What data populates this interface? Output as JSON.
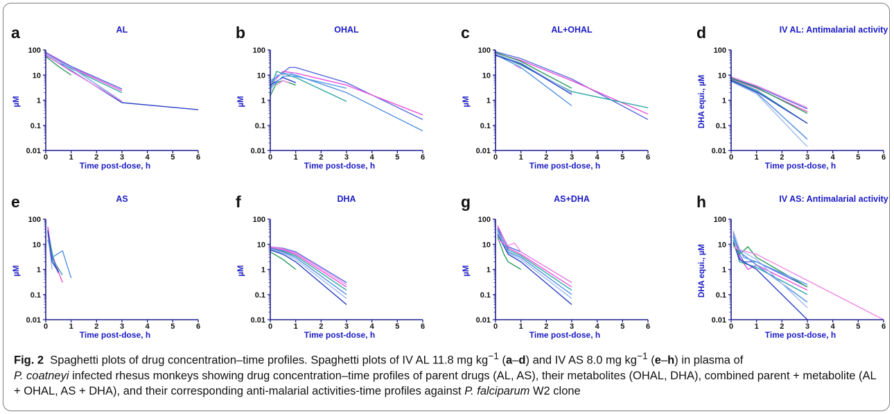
{
  "colors": {
    "axis": "#1d1d8f",
    "title": "#1b1bc4",
    "series_palette": [
      "#5a6adf",
      "#e94fd8",
      "#2aa6a0",
      "#4f8fe0",
      "#9db8ee",
      "#2a3fc4",
      "#2b9a5c",
      "#f088e6",
      "#5c9ce8",
      "#b7d3f2"
    ]
  },
  "caption": {
    "label": "Fig. 2",
    "line1_a": "Spaghetti plots of drug concentration–time profiles. Spaghetti plots of IV AL 11.8 mg kg",
    "exp1": "−1",
    "line1_b": " (",
    "bold_a": "a",
    "dash1": "–",
    "bold_d": "d",
    "line1_c": ") and IV AS 8.0 mg kg",
    "exp2": "−1",
    "line1_d": " (",
    "bold_e": "e",
    "dash2": "–",
    "bold_h": "h",
    "line1_e": ") in plasma of",
    "species": "P. coatneyi",
    "line2": " infected rhesus monkeys showing drug concentration–time profiles of parent drugs (AL, AS), their metabolites (OHAL, DHA), combined parent + metabolite (AL + OHAL, AS + DHA), and their corresponding anti-malarial activities-time profiles against ",
    "parasite": "P. falciparum",
    "line3": " W2 clone"
  },
  "chart_data": [
    {
      "panel": "a",
      "title": "AL",
      "type": "line",
      "xlabel": "Time post-dose, h",
      "ylabel": "µM",
      "xlim": [
        0,
        6
      ],
      "ylim": [
        0.01,
        100
      ],
      "yscale": "log",
      "xticks": [
        "0",
        "1",
        "2",
        "3",
        "4",
        "5",
        "6"
      ],
      "yticks": [
        "0.01",
        "0.1",
        "1",
        "10",
        "100"
      ],
      "series": [
        {
          "x": [
            0,
            1,
            3
          ],
          "y": [
            80,
            22,
            2.8
          ]
        },
        {
          "x": [
            0,
            1,
            3
          ],
          "y": [
            75,
            20,
            2.4
          ]
        },
        {
          "x": [
            0,
            1,
            3
          ],
          "y": [
            70,
            18,
            2.0
          ]
        },
        {
          "x": [
            0,
            0.5,
            1,
            3
          ],
          "y": [
            65,
            30,
            20,
            0.9
          ]
        },
        {
          "x": [
            0,
            0.5,
            1,
            3
          ],
          "y": [
            70,
            35,
            20,
            0.85
          ]
        },
        {
          "x": [
            0,
            1,
            3,
            6
          ],
          "y": [
            60,
            15,
            0.8,
            0.42
          ]
        },
        {
          "x": [
            0,
            0.5,
            1
          ],
          "y": [
            55,
            22,
            10
          ]
        },
        {
          "x": [
            0,
            1,
            3
          ],
          "y": [
            62,
            14,
            0.9
          ]
        }
      ]
    },
    {
      "panel": "b",
      "title": "OHAL",
      "type": "line",
      "xlabel": "Time post-dose, h",
      "ylabel": "µM",
      "xlim": [
        0,
        6
      ],
      "ylim": [
        0.01,
        100
      ],
      "yscale": "log",
      "xticks": [
        "0",
        "1",
        "2",
        "3",
        "4",
        "5",
        "6"
      ],
      "yticks": [
        "0.01",
        "0.1",
        "1",
        "10",
        "100"
      ],
      "series": [
        {
          "x": [
            0,
            0.75,
            1,
            3,
            6
          ],
          "y": [
            5,
            20,
            20,
            5,
            0.17
          ]
        },
        {
          "x": [
            0,
            0.5,
            1,
            3,
            6
          ],
          "y": [
            4,
            14,
            12,
            4,
            0.26
          ]
        },
        {
          "x": [
            0,
            0.25,
            1,
            3
          ],
          "y": [
            3,
            14,
            8,
            0.9
          ]
        },
        {
          "x": [
            0,
            0.5,
            1,
            3,
            6
          ],
          "y": [
            6,
            12,
            10,
            2,
            0.06
          ]
        },
        {
          "x": [
            0,
            0.25,
            1
          ],
          "y": [
            2,
            10,
            12
          ]
        },
        {
          "x": [
            0,
            0.5,
            1
          ],
          "y": [
            4,
            8,
            5
          ]
        },
        {
          "x": [
            0,
            0.25,
            0.5,
            1
          ],
          "y": [
            1.5,
            5,
            6,
            4
          ]
        },
        {
          "x": [
            0.25,
            0.5,
            0.75
          ],
          "y": [
            4,
            6,
            5
          ]
        },
        {
          "x": [
            0,
            0.5,
            1,
            3
          ],
          "y": [
            3,
            9,
            9,
            3
          ]
        }
      ]
    },
    {
      "panel": "c",
      "title": "AL+OHAL",
      "type": "line",
      "xlabel": "Time post-dose, h",
      "ylabel": "µM",
      "xlim": [
        0,
        6
      ],
      "ylim": [
        0.01,
        100
      ],
      "yscale": "log",
      "xticks": [
        "0",
        "1",
        "2",
        "3",
        "4",
        "5",
        "6"
      ],
      "yticks": [
        "0.01",
        "0.1",
        "1",
        "10",
        "100"
      ],
      "series": [
        {
          "x": [
            0,
            1,
            3,
            6
          ],
          "y": [
            85,
            45,
            7,
            0.17
          ]
        },
        {
          "x": [
            0,
            1,
            3,
            6
          ],
          "y": [
            75,
            38,
            6,
            0.28
          ]
        },
        {
          "x": [
            0,
            1,
            3,
            6
          ],
          "y": [
            70,
            25,
            2.2,
            0.5
          ]
        },
        {
          "x": [
            0,
            1,
            3
          ],
          "y": [
            65,
            20,
            0.6
          ]
        },
        {
          "x": [
            0,
            1,
            3
          ],
          "y": [
            70,
            30,
            2.0
          ]
        },
        {
          "x": [
            0,
            1,
            3
          ],
          "y": [
            60,
            28,
            1.7
          ]
        },
        {
          "x": [
            0,
            1,
            3
          ],
          "y": [
            80,
            35,
            3
          ]
        },
        {
          "x": [
            0.75,
            1
          ],
          "y": [
            25,
            18
          ]
        }
      ]
    },
    {
      "panel": "d",
      "title": "IV AL: Antimalarial activity",
      "type": "line",
      "xlabel": "Time post-dose, h",
      "ylabel": "DHA equi., µM",
      "xlim": [
        0,
        6
      ],
      "ylim": [
        0.01,
        100
      ],
      "yscale": "log",
      "xticks": [
        "0",
        "1",
        "2",
        "3",
        "4",
        "5",
        "6"
      ],
      "yticks": [
        "0.01",
        "0.1",
        "1",
        "10",
        "100"
      ],
      "series": [
        {
          "x": [
            0,
            1,
            3
          ],
          "y": [
            8,
            3.5,
            0.45
          ]
        },
        {
          "x": [
            0,
            1,
            3
          ],
          "y": [
            7,
            3,
            0.35
          ]
        },
        {
          "x": [
            0,
            1,
            3
          ],
          "y": [
            6.5,
            2.5,
            0.12
          ]
        },
        {
          "x": [
            0,
            1,
            3
          ],
          "y": [
            6,
            2,
            0.028
          ]
        },
        {
          "x": [
            0,
            1,
            3
          ],
          "y": [
            5.5,
            1.8,
            0.014
          ]
        },
        {
          "x": [
            0,
            1,
            3
          ],
          "y": [
            6,
            2.2,
            0.12
          ]
        },
        {
          "x": [
            0,
            1,
            3
          ],
          "y": [
            7.5,
            3.2,
            0.3
          ]
        },
        {
          "x": [
            0,
            1,
            3
          ],
          "y": [
            8.5,
            3.8,
            0.5
          ]
        }
      ]
    },
    {
      "panel": "e",
      "title": "AS",
      "type": "line",
      "xlabel": "Time post-dose, h",
      "ylabel": "µM",
      "xlim": [
        0,
        6
      ],
      "ylim": [
        0.01,
        100
      ],
      "yscale": "log",
      "xticks": [
        "0",
        "1",
        "2",
        "3",
        "4",
        "5",
        "6"
      ],
      "yticks": [
        "0.01",
        "0.1",
        "1",
        "10",
        "100"
      ],
      "series": [
        {
          "x": [
            0.083,
            0.25,
            0.5
          ],
          "y": [
            40,
            3,
            0.7
          ]
        },
        {
          "x": [
            0.083,
            0.25,
            0.66
          ],
          "y": [
            50,
            4,
            0.3
          ]
        },
        {
          "x": [
            0.083,
            0.33,
            0.66
          ],
          "y": [
            30,
            2,
            0.6
          ]
        },
        {
          "x": [
            0.083,
            0.25,
            0.66,
            1
          ],
          "y": [
            15,
            3,
            5.5,
            0.45
          ]
        },
        {
          "x": [
            0.083,
            0.25
          ],
          "y": [
            25,
            1
          ]
        },
        {
          "x": [
            0.083,
            0.25,
            0.5
          ],
          "y": [
            35,
            2,
            0.8
          ]
        }
      ]
    },
    {
      "panel": "f",
      "title": "DHA",
      "type": "line",
      "xlabel": "Time post-dose, h",
      "ylabel": "µM",
      "xlim": [
        0,
        6
      ],
      "ylim": [
        0.01,
        100
      ],
      "yscale": "log",
      "xticks": [
        "0",
        "1",
        "2",
        "3",
        "4",
        "5",
        "6"
      ],
      "yticks": [
        "0.01",
        "0.1",
        "1",
        "10",
        "100"
      ],
      "series": [
        {
          "x": [
            0,
            0.5,
            1,
            3
          ],
          "y": [
            8,
            7,
            5,
            0.3
          ]
        },
        {
          "x": [
            0,
            0.5,
            1,
            3
          ],
          "y": [
            7.5,
            6,
            4,
            0.2
          ]
        },
        {
          "x": [
            0,
            0.5,
            1,
            3
          ],
          "y": [
            7,
            5.5,
            3.5,
            0.15
          ]
        },
        {
          "x": [
            0,
            0.5,
            1,
            3
          ],
          "y": [
            7,
            5,
            3,
            0.1
          ]
        },
        {
          "x": [
            0,
            0.5,
            1,
            3
          ],
          "y": [
            6.5,
            4.5,
            2.5,
            0.07
          ]
        },
        {
          "x": [
            0,
            0.5,
            1,
            3
          ],
          "y": [
            6,
            4,
            2,
            0.04
          ]
        },
        {
          "x": [
            0,
            0.5,
            1
          ],
          "y": [
            5,
            2.5,
            1
          ]
        },
        {
          "x": [
            0,
            0.5,
            1,
            3
          ],
          "y": [
            8,
            6.5,
            4.5,
            0.25
          ]
        }
      ]
    },
    {
      "panel": "g",
      "title": "AS+DHA",
      "type": "line",
      "xlabel": "Time post-dose, h",
      "ylabel": "µM",
      "xlim": [
        0,
        6
      ],
      "ylim": [
        0.01,
        100
      ],
      "yscale": "log",
      "xticks": [
        "0",
        "1",
        "2",
        "3",
        "4",
        "5",
        "6"
      ],
      "yticks": [
        "0.01",
        "0.1",
        "1",
        "10",
        "100"
      ],
      "series": [
        {
          "x": [
            0.083,
            0.5,
            1,
            3
          ],
          "y": [
            45,
            8,
            5,
            0.3
          ]
        },
        {
          "x": [
            0.083,
            0.5,
            1,
            3
          ],
          "y": [
            55,
            7,
            4,
            0.2
          ]
        },
        {
          "x": [
            0.083,
            0.5,
            1,
            3
          ],
          "y": [
            35,
            6,
            3.5,
            0.15
          ]
        },
        {
          "x": [
            0.083,
            0.5,
            1,
            3
          ],
          "y": [
            40,
            5,
            3,
            0.1
          ]
        },
        {
          "x": [
            0.083,
            0.5,
            1,
            3
          ],
          "y": [
            30,
            4.5,
            2.5,
            0.07
          ]
        },
        {
          "x": [
            0.083,
            0.5,
            1,
            3
          ],
          "y": [
            25,
            4,
            2,
            0.04
          ]
        },
        {
          "x": [
            0.083,
            0.33,
            0.5,
            1
          ],
          "y": [
            20,
            4,
            2,
            1
          ]
        },
        {
          "x": [
            0.083,
            0.5,
            0.75,
            1,
            3
          ],
          "y": [
            15,
            9,
            11,
            5,
            0.3
          ]
        }
      ]
    },
    {
      "panel": "h",
      "title": "IV AS: Antimalarial activity",
      "type": "line",
      "xlabel": "Time post-dose, h",
      "ylabel": "DHA equi., µM",
      "xlim": [
        0,
        6
      ],
      "ylim": [
        0.01,
        100
      ],
      "yscale": "log",
      "xticks": [
        "0",
        "1",
        "2",
        "3",
        "4",
        "5",
        "6"
      ],
      "yticks": [
        "0.01",
        "0.1",
        "1",
        "10",
        "100"
      ],
      "series": [
        {
          "x": [
            0.083,
            0.33,
            0.5,
            1,
            3
          ],
          "y": [
            20,
            4,
            2,
            2,
            0.2
          ]
        },
        {
          "x": [
            0.083,
            0.33,
            0.66,
            1,
            3
          ],
          "y": [
            30,
            3,
            1,
            1.5,
            0.15
          ]
        },
        {
          "x": [
            0.083,
            0.33,
            1,
            3
          ],
          "y": [
            15,
            2,
            1.2,
            0.1
          ]
        },
        {
          "x": [
            0.083,
            0.33,
            1,
            3
          ],
          "y": [
            25,
            5,
            1.5,
            0.05
          ]
        },
        {
          "x": [
            0.083,
            0.33,
            1,
            3
          ],
          "y": [
            35,
            6,
            2.5,
            0.03
          ]
        },
        {
          "x": [
            0.083,
            0.33,
            1,
            3
          ],
          "y": [
            12,
            2.5,
            1,
            0.01
          ]
        },
        {
          "x": [
            0.083,
            0.33,
            0.66,
            1,
            3
          ],
          "y": [
            10,
            4,
            8,
            3,
            0.2
          ]
        },
        {
          "x": [
            0.083,
            0.33,
            1,
            6
          ],
          "y": [
            8,
            6,
            4,
            0.01
          ]
        },
        {
          "x": [
            0.083,
            0.5,
            1,
            3
          ],
          "y": [
            18,
            3,
            2,
            0.25
          ]
        }
      ]
    }
  ]
}
